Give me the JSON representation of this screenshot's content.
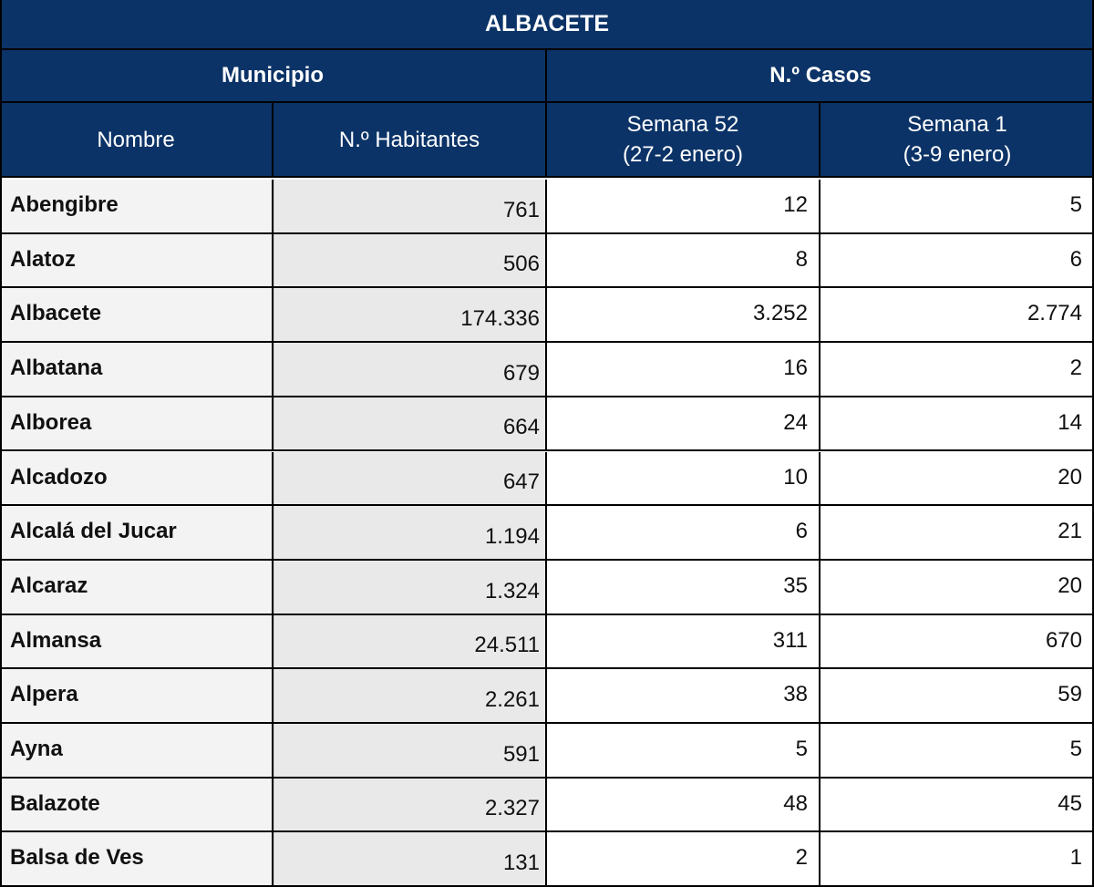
{
  "table": {
    "title": "ALBACETE",
    "group_headers": {
      "municipio": "Municipio",
      "casos": "N.º Casos"
    },
    "columns": {
      "nombre": "Nombre",
      "habitantes": "N.º Habitantes",
      "semana52_line1": "Semana 52",
      "semana52_line2": "(27-2 enero)",
      "semana1_line1": "Semana 1",
      "semana1_line2": "(3-9 enero)"
    },
    "rows": [
      {
        "nombre": "Abengibre",
        "habitantes": "761",
        "semana52": "12",
        "semana1": "5"
      },
      {
        "nombre": "Alatoz",
        "habitantes": "506",
        "semana52": "8",
        "semana1": "6"
      },
      {
        "nombre": "Albacete",
        "habitantes": "174.336",
        "semana52": "3.252",
        "semana1": "2.774"
      },
      {
        "nombre": "Albatana",
        "habitantes": "679",
        "semana52": "16",
        "semana1": "2"
      },
      {
        "nombre": "Alborea",
        "habitantes": "664",
        "semana52": "24",
        "semana1": "14"
      },
      {
        "nombre": "Alcadozo",
        "habitantes": "647",
        "semana52": "10",
        "semana1": "20"
      },
      {
        "nombre": "Alcalá  del Jucar",
        "habitantes": "1.194",
        "semana52": "6",
        "semana1": "21"
      },
      {
        "nombre": "Alcaraz",
        "habitantes": "1.324",
        "semana52": "35",
        "semana1": "20"
      },
      {
        "nombre": "Almansa",
        "habitantes": "24.511",
        "semana52": "311",
        "semana1": "670"
      },
      {
        "nombre": "Alpera",
        "habitantes": "2.261",
        "semana52": "38",
        "semana1": "59"
      },
      {
        "nombre": "Ayna",
        "habitantes": "591",
        "semana52": "5",
        "semana1": "5"
      },
      {
        "nombre": "Balazote",
        "habitantes": "2.327",
        "semana52": "48",
        "semana1": "45"
      },
      {
        "nombre": "Balsa de Ves",
        "habitantes": "131",
        "semana52": "2",
        "semana1": "1"
      }
    ]
  },
  "colors": {
    "header_bg": "#0b3367",
    "header_text": "#ffffff",
    "name_col_bg": "#f3f3f3",
    "pop_col_bg": "#e9e9e9",
    "grid": "#000000"
  }
}
